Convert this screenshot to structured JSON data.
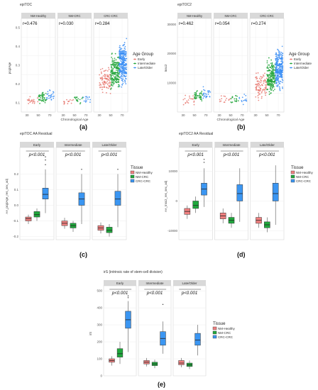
{
  "figure": {
    "panels": [
      {
        "id": "a",
        "caption": "(a)",
        "title": "epiTOC",
        "xlabel": "Chronological Age",
        "ylabel": "pcgtAge",
        "facets": [
          "NM-Healthy",
          "NM-CRC",
          "CRC-CRC"
        ],
        "r_labels": [
          "r=0.476",
          "r=0.030",
          "r=0.284"
        ],
        "x_ticks": [
          "30",
          "50",
          "70"
        ],
        "y_ticks": [
          "0.1",
          "0.2",
          "0.3",
          "0.4",
          "0.5"
        ],
        "legend_title": "Age Group",
        "legend_items": [
          "Early",
          "Intermediate",
          "Late/Older"
        ]
      },
      {
        "id": "b",
        "caption": "(b)",
        "title": "epiTOC2",
        "xlabel": "Chronological Age",
        "ylabel": "tnsc2",
        "facets": [
          "NM-Healthy",
          "NM-CRC",
          "CRC-CRC"
        ],
        "r_labels": [
          "r=0.462",
          "r=0.054",
          "r=0.274"
        ],
        "x_ticks": [
          "30",
          "50",
          "70"
        ],
        "y_ticks": [
          "10000",
          "20000",
          "30000"
        ],
        "legend_title": "Age Group",
        "legend_items": [
          "Early",
          "Intermediate",
          "Late/Older"
        ]
      },
      {
        "id": "c",
        "caption": "(c)",
        "title": "epiTOC AA Residual",
        "xlabel": "",
        "ylabel": "AA_pcgtAge_res_sex_adj",
        "facets": [
          "Early",
          "Intermediate",
          "Late/Older"
        ],
        "p_labels": [
          "p<0.001",
          "p<0.001",
          "p<0.001"
        ],
        "y_ticks": [
          "-0.2",
          "-0.1",
          "0.0",
          "0.1",
          "0.2"
        ],
        "legend_title": "Tissue",
        "legend_items": [
          "NM-Healthy",
          "NM-CRC",
          "CRC-CRC"
        ]
      },
      {
        "id": "d",
        "caption": "(d)",
        "title": "epiTOC2 AA Residual",
        "xlabel": "",
        "ylabel": "AA_tnsc2_res_sex_adj",
        "facets": [
          "Early",
          "Intermediate",
          "Late/Older"
        ],
        "p_labels": [
          "p<0.001",
          "p<0.001",
          "p<0.001"
        ],
        "y_ticks": [
          "-10000",
          "0",
          "10000"
        ],
        "legend_title": "Tissue",
        "legend_items": [
          "NM-Healthy",
          "NM-CRC",
          "CRC-CRC"
        ]
      },
      {
        "id": "e",
        "caption": "(e)",
        "title": "irS (intrinsic rate of stem-cell division)",
        "xlabel": "",
        "ylabel": "irS",
        "facets": [
          "Early",
          "Intermediate",
          "Late/Older"
        ],
        "p_labels": [
          "p<0.001",
          "p<0.001",
          "p<0.001"
        ],
        "y_ticks": [
          "0",
          "100",
          "200",
          "300",
          "400",
          "500"
        ],
        "legend_title": "Tissue",
        "legend_items": [
          "NM-Healthy",
          "NM-CRC",
          "CRC-CRC"
        ]
      }
    ]
  },
  "colors": {
    "early": "#e8776f",
    "intermediate": "#21a43a",
    "late": "#3d8ff5",
    "nm_healthy": "#f08080",
    "nm_crc": "#1fa83c",
    "crc_crc": "#3b96f2"
  },
  "chart_data": [
    {
      "type": "scatter",
      "panel": "a",
      "ylim": [
        0.05,
        0.55
      ],
      "xlim": [
        20,
        80
      ],
      "facets": [
        {
          "name": "NM-Healthy",
          "r": 0.476,
          "clusters": [
            {
              "group": "early",
              "x_range": [
                30,
                50
              ],
              "y_center": 0.11,
              "y_spread": 0.02,
              "n": 20
            },
            {
              "group": "intermediate",
              "x_range": [
                50,
                65
              ],
              "y_center": 0.13,
              "y_spread": 0.025,
              "n": 45
            },
            {
              "group": "late",
              "x_range": [
                65,
                78
              ],
              "y_center": 0.14,
              "y_spread": 0.025,
              "n": 25
            }
          ]
        },
        {
          "name": "NM-CRC",
          "r": 0.03,
          "clusters": [
            {
              "group": "early",
              "x_range": [
                30,
                50
              ],
              "y_center": 0.11,
              "y_spread": 0.02,
              "n": 14
            },
            {
              "group": "intermediate",
              "x_range": [
                50,
                65
              ],
              "y_center": 0.12,
              "y_spread": 0.02,
              "n": 18
            },
            {
              "group": "late",
              "x_range": [
                65,
                78
              ],
              "y_center": 0.12,
              "y_spread": 0.02,
              "n": 14
            }
          ]
        },
        {
          "name": "CRC-CRC",
          "r": 0.284,
          "clusters": [
            {
              "group": "early",
              "x_range": [
                30,
                50
              ],
              "y_center": 0.22,
              "y_spread": 0.06,
              "n": 90
            },
            {
              "group": "intermediate",
              "x_range": [
                50,
                65
              ],
              "y_center": 0.27,
              "y_spread": 0.08,
              "n": 200
            },
            {
              "group": "late",
              "x_range": [
                65,
                78
              ],
              "y_center": 0.31,
              "y_spread": 0.1,
              "n": 280
            }
          ]
        }
      ]
    },
    {
      "type": "scatter",
      "panel": "b",
      "ylim": [
        0,
        32000
      ],
      "xlim": [
        20,
        80
      ],
      "facets": [
        {
          "name": "NM-Healthy",
          "r": 0.462,
          "clusters": [
            {
              "group": "early",
              "x_range": [
                30,
                50
              ],
              "y_center": 4000,
              "y_spread": 1500,
              "n": 20
            },
            {
              "group": "intermediate",
              "x_range": [
                50,
                65
              ],
              "y_center": 5500,
              "y_spread": 1800,
              "n": 45
            },
            {
              "group": "late",
              "x_range": [
                65,
                78
              ],
              "y_center": 6000,
              "y_spread": 2000,
              "n": 25
            }
          ]
        },
        {
          "name": "NM-CRC",
          "r": 0.054,
          "clusters": [
            {
              "group": "early",
              "x_range": [
                30,
                50
              ],
              "y_center": 4000,
              "y_spread": 1500,
              "n": 14
            },
            {
              "group": "intermediate",
              "x_range": [
                50,
                65
              ],
              "y_center": 4500,
              "y_spread": 1500,
              "n": 18
            },
            {
              "group": "late",
              "x_range": [
                65,
                78
              ],
              "y_center": 4500,
              "y_spread": 1500,
              "n": 14
            }
          ]
        },
        {
          "name": "CRC-CRC",
          "r": 0.274,
          "clusters": [
            {
              "group": "early",
              "x_range": [
                30,
                50
              ],
              "y_center": 9000,
              "y_spread": 4000,
              "n": 90
            },
            {
              "group": "intermediate",
              "x_range": [
                50,
                65
              ],
              "y_center": 12000,
              "y_spread": 5000,
              "n": 200
            },
            {
              "group": "late",
              "x_range": [
                65,
                78
              ],
              "y_center": 15000,
              "y_spread": 6000,
              "n": 280
            }
          ]
        }
      ]
    },
    {
      "type": "box",
      "panel": "c",
      "ylim": [
        -0.22,
        0.37
      ],
      "facets": [
        {
          "name": "Early",
          "p": "p<0.001",
          "boxes": [
            {
              "tissue": "nm_healthy",
              "min": -0.12,
              "q1": -0.1,
              "median": -0.085,
              "q3": -0.075,
              "max": -0.06
            },
            {
              "tissue": "nm_crc",
              "min": -0.1,
              "q1": -0.075,
              "median": -0.06,
              "q3": -0.04,
              "max": -0.02
            },
            {
              "tissue": "crc_crc",
              "min": -0.05,
              "q1": 0.04,
              "median": 0.07,
              "q3": 0.11,
              "max": 0.23,
              "outliers": [
                0.26,
                0.29,
                0.31
              ]
            }
          ]
        },
        {
          "name": "Intermediate",
          "p": "p<0.001",
          "boxes": [
            {
              "tissue": "nm_healthy",
              "min": -0.15,
              "q1": -0.13,
              "median": -0.115,
              "q3": -0.1,
              "max": -0.08
            },
            {
              "tissue": "nm_crc",
              "min": -0.17,
              "q1": -0.145,
              "median": -0.13,
              "q3": -0.115,
              "max": -0.1
            },
            {
              "tissue": "crc_crc",
              "min": -0.12,
              "q1": 0.0,
              "median": 0.04,
              "q3": 0.08,
              "max": 0.2,
              "outliers": [
                0.23
              ]
            }
          ]
        },
        {
          "name": "Late/Older",
          "p": "p<0.001",
          "boxes": [
            {
              "tissue": "nm_healthy",
              "min": -0.18,
              "q1": -0.16,
              "median": -0.145,
              "q3": -0.13,
              "max": -0.11
            },
            {
              "tissue": "nm_crc",
              "min": -0.2,
              "q1": -0.175,
              "median": -0.16,
              "q3": -0.14,
              "max": -0.12
            },
            {
              "tissue": "crc_crc",
              "min": -0.14,
              "q1": 0.0,
              "median": 0.04,
              "q3": 0.09,
              "max": 0.2,
              "outliers": [
                0.23
              ]
            }
          ]
        }
      ]
    },
    {
      "type": "box",
      "panel": "d",
      "ylim": [
        -13000,
        18000
      ],
      "facets": [
        {
          "name": "Early",
          "p": "p<0.001",
          "boxes": [
            {
              "tissue": "nm_healthy",
              "min": -6000,
              "q1": -4500,
              "median": -3500,
              "q3": -2500,
              "max": -1500
            },
            {
              "tissue": "nm_crc",
              "min": -4000,
              "q1": -2500,
              "median": -1500,
              "q3": 0,
              "max": 1500
            },
            {
              "tissue": "crc_crc",
              "min": -2000,
              "q1": 2000,
              "median": 4000,
              "q3": 6000,
              "max": 11000,
              "outliers": [
                13000,
                14000
              ]
            }
          ]
        },
        {
          "name": "Intermediate",
          "p": "p<0.001",
          "boxes": [
            {
              "tissue": "nm_healthy",
              "min": -7500,
              "q1": -6000,
              "median": -5000,
              "q3": -4000,
              "max": -2500
            },
            {
              "tissue": "nm_crc",
              "min": -9000,
              "q1": -7500,
              "median": -6500,
              "q3": -5500,
              "max": -4000
            },
            {
              "tissue": "crc_crc",
              "min": -7000,
              "q1": 0,
              "median": 2500,
              "q3": 5500,
              "max": 11000
            }
          ]
        },
        {
          "name": "Late/Older",
          "p": "p<0.001",
          "boxes": [
            {
              "tissue": "nm_healthy",
              "min": -9000,
              "q1": -7500,
              "median": -6500,
              "q3": -5500,
              "max": -4000
            },
            {
              "tissue": "nm_crc",
              "min": -10500,
              "q1": -9000,
              "median": -8000,
              "q3": -7000,
              "max": -5500
            },
            {
              "tissue": "crc_crc",
              "min": -8000,
              "q1": 0,
              "median": 2500,
              "q3": 6000,
              "max": 12000
            }
          ]
        }
      ]
    },
    {
      "type": "box",
      "panel": "e",
      "ylim": [
        0,
        530
      ],
      "facets": [
        {
          "name": "Early",
          "p": "p<0.001",
          "boxes": [
            {
              "tissue": "nm_healthy",
              "min": 60,
              "q1": 80,
              "median": 90,
              "q3": 100,
              "max": 115
            },
            {
              "tissue": "nm_crc",
              "min": 70,
              "q1": 110,
              "median": 130,
              "q3": 160,
              "max": 200
            },
            {
              "tissue": "crc_crc",
              "min": 140,
              "q1": 280,
              "median": 330,
              "q3": 380,
              "max": 440,
              "outliers": [
                460,
                470
              ]
            }
          ]
        },
        {
          "name": "Intermediate",
          "p": "p<0.001",
          "boxes": [
            {
              "tissue": "nm_healthy",
              "min": 55,
              "q1": 70,
              "median": 80,
              "q3": 90,
              "max": 105
            },
            {
              "tissue": "nm_crc",
              "min": 45,
              "q1": 60,
              "median": 70,
              "q3": 80,
              "max": 95
            },
            {
              "tissue": "crc_crc",
              "min": 130,
              "q1": 180,
              "median": 220,
              "q3": 260,
              "max": 320,
              "outliers": [
                420
              ]
            }
          ]
        },
        {
          "name": "Late/Older",
          "p": "p<0.001",
          "boxes": [
            {
              "tissue": "nm_healthy",
              "min": 50,
              "q1": 65,
              "median": 75,
              "q3": 90,
              "max": 105
            },
            {
              "tissue": "nm_crc",
              "min": 40,
              "q1": 55,
              "median": 65,
              "q3": 75,
              "max": 90
            },
            {
              "tissue": "crc_crc",
              "min": 120,
              "q1": 180,
              "median": 210,
              "q3": 250,
              "max": 300
            }
          ]
        }
      ]
    }
  ]
}
